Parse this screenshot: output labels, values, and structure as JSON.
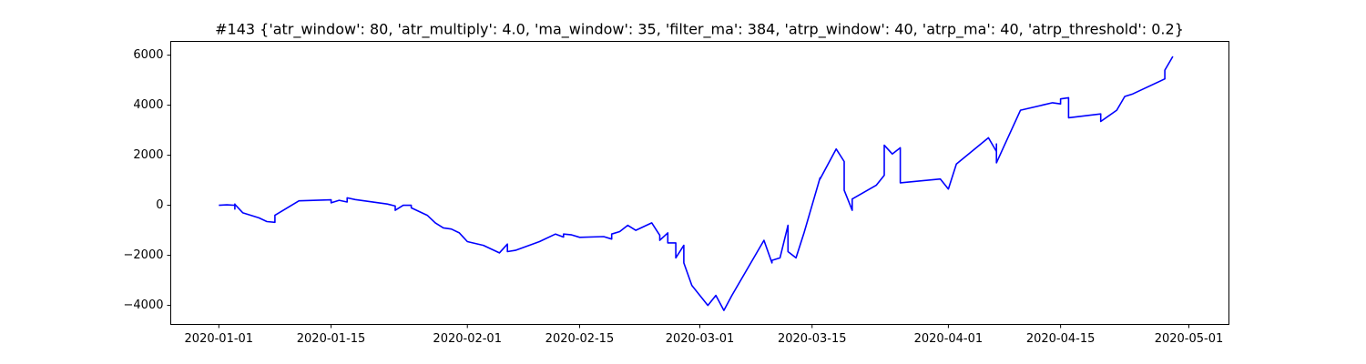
{
  "chart_data": {
    "type": "line",
    "title": "#143 {'atr_window': 80, 'atr_multiply': 4.0, 'ma_window': 35, 'filter_ma': 384, 'atrp_window': 40, 'atrp_ma': 40, 'atrp_threshold': 0.2}",
    "x": [
      "2020-01-01",
      "2020-01-02",
      "2020-01-03",
      "2020-01-03",
      "2020-01-03",
      "2020-01-03",
      "2020-01-04",
      "2020-01-06",
      "2020-01-07",
      "2020-01-08",
      "2020-01-08",
      "2020-01-11",
      "2020-01-15",
      "2020-01-15",
      "2020-01-16",
      "2020-01-17",
      "2020-01-17",
      "2020-01-18",
      "2020-01-22",
      "2020-01-23",
      "2020-01-23",
      "2020-01-24",
      "2020-01-25",
      "2020-01-25",
      "2020-01-27",
      "2020-01-28",
      "2020-01-29",
      "2020-01-30",
      "2020-01-31",
      "2020-02-01",
      "2020-02-03",
      "2020-02-05",
      "2020-02-06",
      "2020-02-06",
      "2020-02-07",
      "2020-02-10",
      "2020-02-12",
      "2020-02-13",
      "2020-02-13",
      "2020-02-14",
      "2020-02-15",
      "2020-02-18",
      "2020-02-19",
      "2020-02-19",
      "2020-02-20",
      "2020-02-21",
      "2020-02-22",
      "2020-02-24",
      "2020-02-25",
      "2020-02-25",
      "2020-02-26",
      "2020-02-26",
      "2020-02-27",
      "2020-02-27",
      "2020-02-28",
      "2020-02-28",
      "2020-02-29",
      "2020-03-02",
      "2020-03-03",
      "2020-03-04",
      "2020-03-05",
      "2020-03-09",
      "2020-03-10",
      "2020-03-10",
      "2020-03-11",
      "2020-03-12",
      "2020-03-12",
      "2020-03-13",
      "2020-03-14",
      "2020-03-16",
      "2020-03-16",
      "2020-03-18",
      "2020-03-19",
      "2020-03-19",
      "2020-03-20",
      "2020-03-20",
      "2020-03-23",
      "2020-03-24",
      "2020-03-24",
      "2020-03-25",
      "2020-03-26",
      "2020-03-26",
      "2020-03-31",
      "2020-04-01",
      "2020-04-02",
      "2020-04-06",
      "2020-04-07",
      "2020-04-07",
      "2020-04-07",
      "2020-04-08",
      "2020-04-10",
      "2020-04-14",
      "2020-04-15",
      "2020-04-15",
      "2020-04-16",
      "2020-04-16",
      "2020-04-20",
      "2020-04-20",
      "2020-04-22",
      "2020-04-23",
      "2020-04-24",
      "2020-04-28",
      "2020-04-28",
      "2020-04-29"
    ],
    "series": [
      {
        "color": "#0000ff",
        "values": [
          0,
          20,
          0,
          50,
          -150,
          40,
          -300,
          -500,
          -650,
          -680,
          -400,
          180,
          220,
          100,
          200,
          130,
          300,
          230,
          50,
          -30,
          -200,
          0,
          0,
          -100,
          -400,
          -700,
          -900,
          -950,
          -1100,
          -1450,
          -1600,
          -1900,
          -1550,
          -1850,
          -1800,
          -1450,
          -1150,
          -1270,
          -1150,
          -1180,
          -1280,
          -1250,
          -1350,
          -1150,
          -1050,
          -800,
          -1000,
          -700,
          -1200,
          -1400,
          -1100,
          -1500,
          -1500,
          -2100,
          -1600,
          -2300,
          -3200,
          -4000,
          -3600,
          -4200,
          -3600,
          -1400,
          -2300,
          -2200,
          -2100,
          -800,
          -1850,
          -2100,
          -1100,
          1100,
          1050,
          2250,
          1750,
          600,
          -200,
          250,
          800,
          1200,
          2400,
          2050,
          2300,
          900,
          1050,
          650,
          1650,
          2700,
          2150,
          2450,
          1700,
          2400,
          3800,
          4100,
          4050,
          4250,
          4300,
          3500,
          3650,
          3350,
          3800,
          4350,
          4450,
          5050,
          5400,
          5950
        ]
      }
    ],
    "xlim": [
      "2019-12-26",
      "2020-05-06"
    ],
    "xticks": [
      "2020-01-01",
      "2020-01-15",
      "2020-02-01",
      "2020-02-15",
      "2020-03-01",
      "2020-03-15",
      "2020-04-01",
      "2020-04-15",
      "2020-05-01"
    ],
    "ylim": [
      -4760,
      6550
    ],
    "yticks": [
      {
        "value": -4000,
        "label": "−4000"
      },
      {
        "value": -2000,
        "label": "−2000"
      },
      0,
      2000,
      4000,
      6000
    ]
  }
}
